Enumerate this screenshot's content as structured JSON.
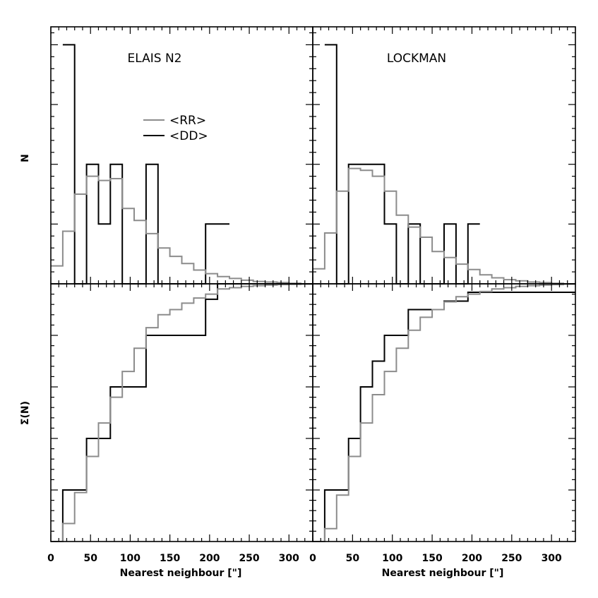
{
  "chart_data": {
    "type": "histogram",
    "xlabel": "Nearest neighbour [\"]",
    "xlim": [
      0,
      330
    ],
    "x_ticks": [
      0,
      50,
      100,
      150,
      200,
      250,
      300
    ],
    "row_ylabels": [
      "N",
      "Σ(N)"
    ],
    "legend": {
      "placement": "upper-left (ELAIS N2 top panel)",
      "entries": [
        {
          "label": "<RR>",
          "color": "#8c8c8c"
        },
        {
          "label": "<DD>",
          "color": "#000000"
        }
      ]
    },
    "colors": {
      "RR": "#8c8c8c",
      "DD": "#000000"
    },
    "bins": [
      0,
      15,
      30,
      45,
      60,
      75,
      90,
      105,
      120,
      135,
      150,
      165,
      180,
      195,
      210,
      225,
      240,
      255,
      270,
      285,
      300,
      315,
      330
    ],
    "panels": [
      {
        "title": "ELAIS N2",
        "histogram": {
          "ylim": [
            0,
            4.3
          ],
          "series": [
            {
              "name": "<DD>",
              "x": [
                15,
                30,
                45,
                60,
                75,
                90,
                120,
                135,
                195,
                225
              ],
              "y": [
                4,
                0,
                2,
                1,
                2,
                0,
                2,
                0,
                1,
                0
              ]
            },
            {
              "name": "<RR>",
              "x": [
                0,
                15,
                30,
                45,
                60,
                75,
                90,
                105,
                120,
                135,
                150,
                165,
                180,
                195,
                210,
                225,
                240,
                255,
                270,
                285,
                300,
                315,
                330
              ],
              "y": [
                0.3,
                0.88,
                1.5,
                1.8,
                1.73,
                1.76,
                1.26,
                1.06,
                0.84,
                0.6,
                0.46,
                0.34,
                0.23,
                0.17,
                0.12,
                0.09,
                0.06,
                0.04,
                0.03,
                0.02,
                0.01,
                0.0,
                0.0
              ]
            }
          ]
        },
        "cumulative": {
          "ylim": [
            0,
            1.0
          ],
          "series": [
            {
              "name": "<DD>",
              "x": [
                0,
                15,
                45,
                75,
                120,
                195,
                210,
                330
              ],
              "y": [
                0.0,
                0.2,
                0.4,
                0.6,
                0.8,
                0.94,
                1.0,
                1.0
              ]
            },
            {
              "name": "<RR>",
              "x": [
                0,
                15,
                30,
                45,
                60,
                75,
                90,
                105,
                120,
                135,
                150,
                165,
                180,
                195,
                210,
                225,
                240,
                255,
                270,
                285,
                300,
                315,
                330
              ],
              "y": [
                0.0,
                0.07,
                0.19,
                0.33,
                0.46,
                0.56,
                0.66,
                0.75,
                0.83,
                0.88,
                0.9,
                0.925,
                0.945,
                0.96,
                0.98,
                0.985,
                0.99,
                0.993,
                0.995,
                0.997,
                0.998,
                0.999,
                1.0
              ]
            }
          ]
        }
      },
      {
        "title": "LOCKMAN",
        "histogram": {
          "ylim": [
            0,
            4.3
          ],
          "series": [
            {
              "name": "<DD>",
              "x": [
                15,
                30,
                45,
                90,
                105,
                120,
                135,
                165,
                180,
                195,
                210
              ],
              "y": [
                4,
                0,
                2,
                1,
                0,
                1,
                0,
                1,
                0,
                1,
                0
              ]
            },
            {
              "name": "<RR>",
              "x": [
                0,
                15,
                30,
                45,
                60,
                75,
                90,
                105,
                120,
                135,
                150,
                165,
                180,
                195,
                210,
                225,
                240,
                255,
                270,
                285,
                300,
                315,
                330
              ],
              "y": [
                0.25,
                0.85,
                1.55,
                1.93,
                1.9,
                1.8,
                1.55,
                1.15,
                0.95,
                0.78,
                0.54,
                0.44,
                0.33,
                0.24,
                0.15,
                0.1,
                0.07,
                0.05,
                0.03,
                0.02,
                0.01,
                0.0,
                0.0
              ]
            }
          ]
        },
        "cumulative": {
          "ylim": [
            0,
            1.0
          ],
          "series": [
            {
              "name": "<DD>",
              "x": [
                0,
                15,
                45,
                60,
                75,
                90,
                120,
                165,
                195,
                330
              ],
              "y": [
                0.0,
                0.2,
                0.4,
                0.6,
                0.7,
                0.8,
                0.9,
                0.933,
                0.967,
                1.0
              ]
            },
            {
              "name": "<RR>",
              "x": [
                0,
                15,
                30,
                45,
                60,
                75,
                90,
                105,
                120,
                135,
                150,
                165,
                180,
                195,
                210,
                225,
                240,
                255,
                270,
                285,
                300,
                315,
                330
              ],
              "y": [
                0.0,
                0.05,
                0.18,
                0.33,
                0.46,
                0.57,
                0.66,
                0.75,
                0.82,
                0.87,
                0.9,
                0.93,
                0.95,
                0.96,
                0.97,
                0.98,
                0.985,
                0.99,
                0.993,
                0.995,
                0.997,
                0.999,
                1.0
              ]
            }
          ]
        }
      }
    ]
  }
}
